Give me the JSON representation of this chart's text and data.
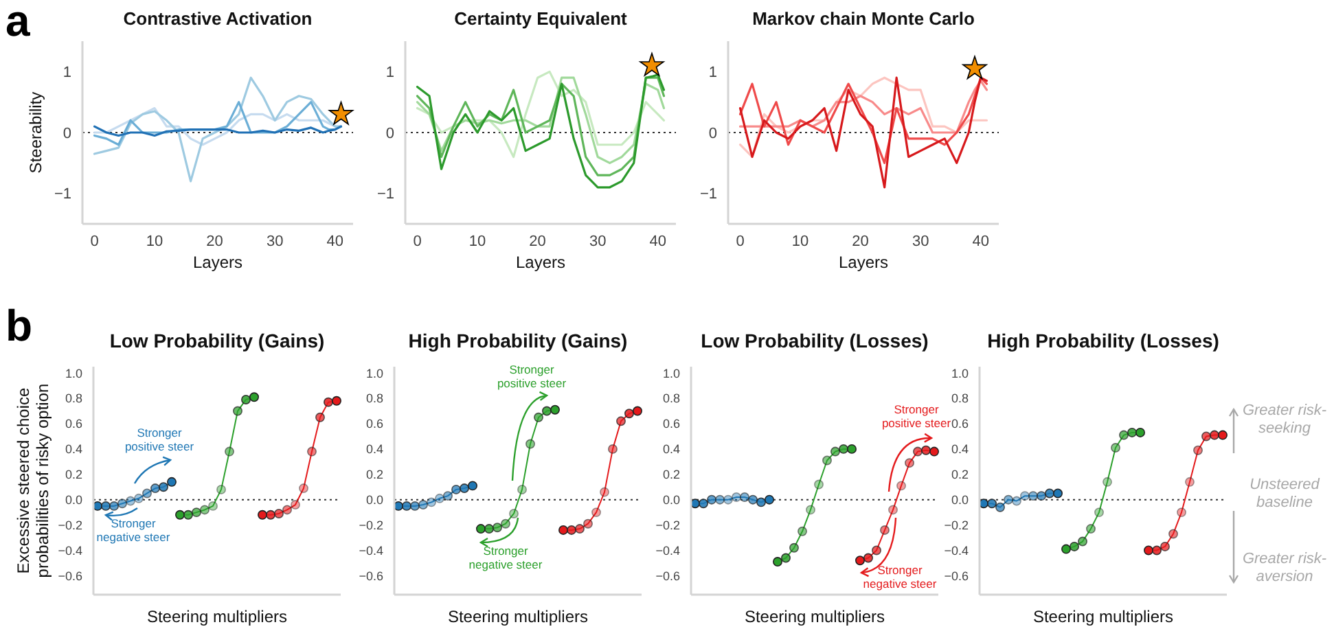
{
  "chart_data": [
    {
      "type": "line",
      "title": "Contrastive Activation",
      "xlabel": "Layers",
      "ylabel": "Steerability",
      "annotations": [
        "a"
      ],
      "x": [
        0,
        2,
        4,
        6,
        8,
        10,
        12,
        14,
        16,
        18,
        20,
        22,
        24,
        26,
        28,
        30,
        32,
        34,
        36,
        38,
        39,
        40,
        41
      ],
      "xlim": [
        -2,
        43
      ],
      "xticks": [
        0,
        10,
        20,
        30,
        40
      ],
      "ylim": [
        -1.5,
        1.5
      ],
      "yticks": [
        {
          "value": -1,
          "label": "−1"
        },
        0,
        1
      ],
      "ref_lines": [
        {
          "axis": "y",
          "value": 0,
          "line_style": "dotted",
          "color": "#333333"
        }
      ],
      "series": [
        {
          "color": "#c6dbef",
          "values": [
            0,
            0,
            0.1,
            0.2,
            0.3,
            0.4,
            0.1,
            0.1,
            -0.1,
            -0.2,
            -0.1,
            0,
            0.2,
            0.3,
            0.3,
            0.2,
            0.3,
            0.2,
            0.2,
            0.2,
            0.15,
            0.1,
            0.1
          ]
        },
        {
          "color": "#9ecae1",
          "values": [
            -0.35,
            -0.3,
            -0.25,
            0.15,
            0.3,
            0.35,
            0.2,
            0,
            -0.8,
            -0.1,
            0,
            0.1,
            0.3,
            0.9,
            0.6,
            0.2,
            0.5,
            0.6,
            0.55,
            0.3,
            0.2,
            0.1,
            0.1
          ]
        },
        {
          "color": "#6baed6",
          "values": [
            -0.05,
            -0.1,
            -0.2,
            0.2,
            0,
            0,
            0,
            0.05,
            0.05,
            0.05,
            0.05,
            0.1,
            0.5,
            0,
            0,
            0,
            0.1,
            0.3,
            0.5,
            0.1,
            0.05,
            0.05,
            0.1
          ]
        },
        {
          "color": "#2171b5",
          "values": [
            0.1,
            0,
            -0.05,
            0,
            0,
            -0.05,
            0.02,
            0.03,
            0.05,
            0.05,
            0.05,
            0.05,
            0,
            0,
            0.03,
            0,
            0.05,
            0.03,
            0.08,
            0,
            0.03,
            0.05,
            0.1
          ]
        },
        {
          "type": "scatter",
          "marker": "star",
          "color": "#f28e00",
          "values": [
            null,
            null,
            null,
            null,
            null,
            null,
            null,
            null,
            null,
            null,
            null,
            null,
            null,
            null,
            null,
            null,
            null,
            null,
            null,
            null,
            null,
            null,
            0.3
          ]
        }
      ]
    },
    {
      "type": "line",
      "title": "Certainty Equivalent",
      "xlabel": "Layers",
      "x": [
        0,
        2,
        4,
        6,
        8,
        10,
        12,
        14,
        16,
        18,
        20,
        22,
        24,
        26,
        28,
        30,
        32,
        34,
        36,
        38,
        39,
        40,
        41
      ],
      "xlim": [
        -2,
        43
      ],
      "xticks": [
        0,
        10,
        20,
        30,
        40
      ],
      "ylim": [
        -1.5,
        1.5
      ],
      "yticks": [
        {
          "value": -1,
          "label": "−1"
        },
        0,
        1
      ],
      "ref_lines": [
        {
          "axis": "y",
          "value": 0,
          "line_style": "dotted",
          "color": "#333333"
        }
      ],
      "series": [
        {
          "color": "#c7e9c0",
          "values": [
            0.4,
            0.3,
            0,
            0.1,
            0.2,
            0.2,
            0.2,
            0,
            -0.4,
            0.3,
            0.9,
            1,
            0.6,
            0.7,
            0.5,
            -0.2,
            -0.2,
            -0.2,
            0,
            0.5,
            0.4,
            0.3,
            0.2
          ]
        },
        {
          "color": "#a1d99b",
          "values": [
            0.5,
            0.3,
            -0.3,
            0.1,
            0.2,
            0.15,
            0.2,
            0.15,
            0.2,
            0.2,
            0.1,
            0.1,
            0.9,
            0.9,
            0.3,
            -0.4,
            -0.5,
            -0.4,
            -0.2,
            0.8,
            0.75,
            0.7,
            0.4
          ]
        },
        {
          "color": "#5fb65a",
          "values": [
            0.6,
            0.4,
            -0.4,
            0.1,
            0.5,
            0.1,
            0.3,
            0.2,
            0.7,
            0,
            0.1,
            0.2,
            0.8,
            0.6,
            -0.4,
            -0.7,
            -0.7,
            -0.6,
            -0.4,
            0.9,
            0.9,
            0.9,
            0.6
          ]
        },
        {
          "color": "#2c9a2c",
          "values": [
            0.75,
            0.6,
            -0.6,
            0,
            0.3,
            0,
            0.35,
            0.2,
            0.4,
            -0.3,
            -0.2,
            -0.1,
            0.8,
            -0.1,
            -0.7,
            -0.9,
            -0.9,
            -0.8,
            -0.5,
            0.9,
            0.92,
            0.95,
            0.7
          ]
        },
        {
          "type": "scatter",
          "marker": "star",
          "color": "#f28e00",
          "values": [
            null,
            null,
            null,
            null,
            null,
            null,
            null,
            null,
            null,
            null,
            null,
            null,
            null,
            null,
            null,
            null,
            null,
            null,
            null,
            null,
            1.1,
            null,
            null
          ]
        }
      ]
    },
    {
      "type": "line",
      "title": "Markov chain Monte Carlo",
      "xlabel": "Layers",
      "x": [
        0,
        2,
        4,
        6,
        8,
        10,
        12,
        14,
        16,
        18,
        20,
        22,
        24,
        26,
        28,
        30,
        32,
        34,
        36,
        38,
        39,
        40,
        41
      ],
      "xlim": [
        -2,
        43
      ],
      "xticks": [
        0,
        10,
        20,
        30,
        40
      ],
      "ylim": [
        -1.5,
        1.5
      ],
      "yticks": [
        {
          "value": -1,
          "label": "−1"
        },
        0,
        1
      ],
      "ref_lines": [
        {
          "axis": "y",
          "value": 0,
          "line_style": "dotted",
          "color": "#333333"
        }
      ],
      "series": [
        {
          "color": "#fcc5c0",
          "values": [
            -0.2,
            -0.4,
            0.3,
            0.1,
            0,
            0.1,
            0.2,
            0.2,
            0.5,
            0.7,
            0.6,
            0.8,
            0.9,
            0.8,
            0.7,
            0.7,
            0.1,
            0.1,
            0,
            0.2,
            0.2,
            0.2,
            0.2
          ]
        },
        {
          "color": "#f88a8a",
          "values": [
            0.1,
            0.1,
            0.1,
            0.1,
            0.1,
            0.2,
            0.1,
            0.2,
            0.5,
            0.5,
            0.6,
            0.5,
            0.3,
            0.4,
            0.3,
            0.4,
            0,
            0,
            0,
            0.5,
            0.7,
            0.85,
            0.7
          ]
        },
        {
          "color": "#ef4a4a",
          "values": [
            0.3,
            0.8,
            0.1,
            0.5,
            -0.2,
            0.2,
            0.1,
            0,
            0.4,
            0.8,
            0.4,
            0,
            -0.5,
            0.4,
            -0.1,
            -0.1,
            -0.1,
            -0.2,
            0,
            0.3,
            0.6,
            0.9,
            0.8
          ]
        },
        {
          "color": "#d7191c",
          "values": [
            0.4,
            -0.4,
            0.2,
            0,
            -0.1,
            0.1,
            0.2,
            0.4,
            -0.3,
            0.7,
            0.3,
            0.1,
            -0.9,
            0.9,
            -0.4,
            -0.3,
            -0.2,
            -0.1,
            -0.5,
            0,
            0.5,
            0.9,
            0.85
          ]
        },
        {
          "type": "scatter",
          "marker": "star",
          "color": "#f28e00",
          "values": [
            null,
            null,
            null,
            null,
            null,
            null,
            null,
            null,
            null,
            null,
            null,
            null,
            null,
            null,
            null,
            null,
            null,
            null,
            null,
            null,
            1.05,
            null,
            null
          ]
        }
      ]
    },
    {
      "type": "line",
      "title": "Low Probability (Gains)",
      "xlabel": "Steering multipliers",
      "ylabel": "Excessive steered choice probabilities of risky option",
      "marker": "circle",
      "annotations": [
        "b",
        "Stronger positive steer",
        "Stronger negative steer"
      ],
      "categories": [
        null,
        null,
        null,
        null,
        null,
        null,
        null,
        null,
        null,
        null,
        null,
        null,
        null,
        null,
        null,
        null,
        null,
        null,
        null,
        null,
        null,
        null,
        null,
        null,
        null,
        null,
        null,
        null,
        null,
        null
      ],
      "ylim": [
        -0.75,
        1.05
      ],
      "yticks": [
        {
          "value": -0.6,
          "label": "−0.6"
        },
        {
          "value": -0.4,
          "label": "−0.4"
        },
        {
          "value": -0.2,
          "label": "−0.2"
        },
        {
          "value": 0,
          "label": "0.0"
        },
        0.2,
        0.4,
        0.6,
        0.8,
        {
          "value": 1,
          "label": "1.0"
        }
      ],
      "ref_lines": [
        {
          "axis": "y",
          "value": 0,
          "line_style": "dotted",
          "color": "#333333"
        }
      ],
      "series": [
        {
          "color": "#1f77b4",
          "values": [
            -0.05,
            -0.05,
            -0.05,
            -0.03,
            -0.01,
            0.01,
            0.05,
            0.09,
            0.1,
            0.14,
            null,
            null,
            null,
            null,
            null,
            null,
            null,
            null,
            null,
            null,
            null,
            null,
            null,
            null,
            null,
            null,
            null,
            null,
            null,
            null
          ]
        },
        {
          "color": "#2ca02c",
          "values": [
            null,
            null,
            null,
            null,
            null,
            null,
            null,
            null,
            null,
            null,
            -0.12,
            -0.12,
            -0.1,
            -0.08,
            -0.05,
            0.08,
            0.38,
            0.7,
            0.79,
            0.81,
            null,
            null,
            null,
            null,
            null,
            null,
            null,
            null,
            null,
            null
          ]
        },
        {
          "color": "#e41a1c",
          "values": [
            null,
            null,
            null,
            null,
            null,
            null,
            null,
            null,
            null,
            null,
            null,
            null,
            null,
            null,
            null,
            null,
            null,
            null,
            null,
            null,
            -0.12,
            -0.12,
            -0.11,
            -0.08,
            -0.04,
            0.09,
            0.38,
            0.65,
            0.77,
            0.78
          ]
        }
      ]
    },
    {
      "type": "line",
      "title": "High Probability (Gains)",
      "xlabel": "Steering multipliers",
      "marker": "circle",
      "annotations": [
        "Stronger positive steer",
        "Stronger negative steer"
      ],
      "categories": [
        null,
        null,
        null,
        null,
        null,
        null,
        null,
        null,
        null,
        null,
        null,
        null,
        null,
        null,
        null,
        null,
        null,
        null,
        null,
        null,
        null,
        null,
        null,
        null,
        null,
        null,
        null,
        null,
        null,
        null
      ],
      "ylim": [
        -0.75,
        1.05
      ],
      "yticks": [
        {
          "value": -0.6,
          "label": "−0.6"
        },
        {
          "value": -0.4,
          "label": "−0.4"
        },
        {
          "value": -0.2,
          "label": "−0.2"
        },
        {
          "value": 0,
          "label": "0.0"
        },
        0.2,
        0.4,
        0.6,
        0.8,
        {
          "value": 1,
          "label": "1.0"
        }
      ],
      "ref_lines": [
        {
          "axis": "y",
          "value": 0,
          "line_style": "dotted",
          "color": "#333333"
        }
      ],
      "series": [
        {
          "color": "#1f77b4",
          "values": [
            -0.05,
            -0.05,
            -0.05,
            -0.04,
            -0.02,
            0.01,
            0.03,
            0.08,
            0.09,
            0.11,
            null,
            null,
            null,
            null,
            null,
            null,
            null,
            null,
            null,
            null,
            null,
            null,
            null,
            null,
            null,
            null,
            null,
            null,
            null,
            null
          ]
        },
        {
          "color": "#2ca02c",
          "values": [
            null,
            null,
            null,
            null,
            null,
            null,
            null,
            null,
            null,
            null,
            -0.23,
            -0.23,
            -0.22,
            -0.19,
            -0.11,
            0.08,
            0.44,
            0.65,
            0.7,
            0.71,
            null,
            null,
            null,
            null,
            null,
            null,
            null,
            null,
            null,
            null
          ]
        },
        {
          "color": "#e41a1c",
          "values": [
            null,
            null,
            null,
            null,
            null,
            null,
            null,
            null,
            null,
            null,
            null,
            null,
            null,
            null,
            null,
            null,
            null,
            null,
            null,
            null,
            -0.24,
            -0.24,
            -0.23,
            -0.19,
            -0.1,
            0.06,
            0.4,
            0.62,
            0.68,
            0.7
          ]
        }
      ]
    },
    {
      "type": "line",
      "title": "Low Probability (Losses)",
      "xlabel": "Steering multipliers",
      "marker": "circle",
      "annotations": [
        "Stronger positive steer",
        "Stronger negative steer"
      ],
      "categories": [
        null,
        null,
        null,
        null,
        null,
        null,
        null,
        null,
        null,
        null,
        null,
        null,
        null,
        null,
        null,
        null,
        null,
        null,
        null,
        null,
        null,
        null,
        null,
        null,
        null,
        null,
        null,
        null,
        null,
        null
      ],
      "ylim": [
        -0.75,
        1.05
      ],
      "yticks": [
        {
          "value": -0.6,
          "label": "−0.6"
        },
        {
          "value": -0.4,
          "label": "−0.4"
        },
        {
          "value": -0.2,
          "label": "−0.2"
        },
        {
          "value": 0,
          "label": "0.0"
        },
        0.2,
        0.4,
        0.6,
        0.8,
        {
          "value": 1,
          "label": "1.0"
        }
      ],
      "ref_lines": [
        {
          "axis": "y",
          "value": 0,
          "line_style": "dotted",
          "color": "#333333"
        }
      ],
      "series": [
        {
          "color": "#1f77b4",
          "values": [
            -0.03,
            -0.03,
            0,
            0,
            0,
            0.02,
            0.02,
            0,
            -0.02,
            0,
            null,
            null,
            null,
            null,
            null,
            null,
            null,
            null,
            null,
            null,
            null,
            null,
            null,
            null,
            null,
            null,
            null,
            null,
            null,
            null
          ]
        },
        {
          "color": "#2ca02c",
          "values": [
            null,
            null,
            null,
            null,
            null,
            null,
            null,
            null,
            null,
            null,
            -0.49,
            -0.46,
            -0.38,
            -0.25,
            -0.08,
            0.12,
            0.31,
            0.38,
            0.4,
            0.4,
            null,
            null,
            null,
            null,
            null,
            null,
            null,
            null,
            null,
            null
          ]
        },
        {
          "color": "#e41a1c",
          "values": [
            null,
            null,
            null,
            null,
            null,
            null,
            null,
            null,
            null,
            null,
            null,
            null,
            null,
            null,
            null,
            null,
            null,
            null,
            null,
            null,
            -0.48,
            -0.46,
            -0.4,
            -0.24,
            -0.08,
            0.11,
            0.29,
            0.38,
            0.39,
            0.38
          ]
        }
      ]
    },
    {
      "type": "line",
      "title": "High Probability (Losses)",
      "xlabel": "Steering multipliers",
      "marker": "circle",
      "annotations": [
        "Greater risk-seeking",
        "Unsteered baseline",
        "Greater risk-aversion"
      ],
      "categories": [
        null,
        null,
        null,
        null,
        null,
        null,
        null,
        null,
        null,
        null,
        null,
        null,
        null,
        null,
        null,
        null,
        null,
        null,
        null,
        null,
        null,
        null,
        null,
        null,
        null,
        null,
        null,
        null,
        null,
        null
      ],
      "ylim": [
        -0.75,
        1.05
      ],
      "yticks": [
        {
          "value": -0.6,
          "label": "−0.6"
        },
        {
          "value": -0.4,
          "label": "−0.4"
        },
        {
          "value": -0.2,
          "label": "−0.2"
        },
        {
          "value": 0,
          "label": "0.0"
        },
        0.2,
        0.4,
        0.6,
        0.8,
        {
          "value": 1,
          "label": "1.0"
        }
      ],
      "ref_lines": [
        {
          "axis": "y",
          "value": 0,
          "line_style": "dotted",
          "color": "#333333"
        }
      ],
      "series": [
        {
          "color": "#1f77b4",
          "values": [
            -0.03,
            -0.03,
            -0.06,
            0,
            -0.01,
            0.03,
            0.03,
            0.03,
            0.05,
            0.05,
            null,
            null,
            null,
            null,
            null,
            null,
            null,
            null,
            null,
            null,
            null,
            null,
            null,
            null,
            null,
            null,
            null,
            null,
            null,
            null
          ]
        },
        {
          "color": "#2ca02c",
          "values": [
            null,
            null,
            null,
            null,
            null,
            null,
            null,
            null,
            null,
            null,
            -0.39,
            -0.37,
            -0.33,
            -0.23,
            -0.1,
            0.14,
            0.41,
            0.51,
            0.53,
            0.53,
            null,
            null,
            null,
            null,
            null,
            null,
            null,
            null,
            null,
            null
          ]
        },
        {
          "color": "#e41a1c",
          "values": [
            null,
            null,
            null,
            null,
            null,
            null,
            null,
            null,
            null,
            null,
            null,
            null,
            null,
            null,
            null,
            null,
            null,
            null,
            null,
            null,
            -0.4,
            -0.4,
            -0.37,
            -0.27,
            -0.1,
            0.14,
            0.39,
            0.5,
            0.51,
            0.51
          ]
        }
      ]
    }
  ]
}
